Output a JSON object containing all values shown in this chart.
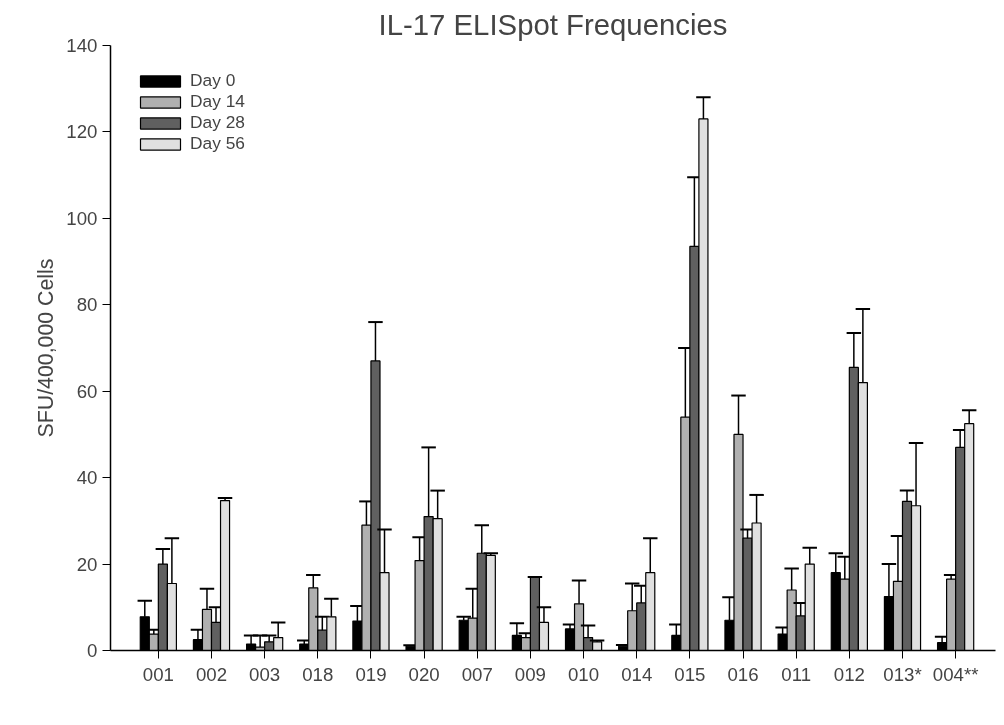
{
  "chart_data": {
    "type": "bar",
    "title": "IL-17 ELISpot Frequencies",
    "ylabel": "SFU/400,000 Cells",
    "categories": [
      "001",
      "002",
      "003",
      "018",
      "019",
      "020",
      "007",
      "009",
      "010",
      "014",
      "015",
      "016",
      "011",
      "012",
      "013*",
      "004**"
    ],
    "series": [
      {
        "name": "Day 0",
        "color": "#000000",
        "values": [
          7.8,
          2.5,
          1.5,
          1.5,
          6.8,
          1,
          7,
          3.5,
          5,
          1,
          3.5,
          7,
          3.8,
          18,
          12.5,
          1.8
        ],
        "errors": [
          [
            7.8,
            11.5
          ],
          [
            2.5,
            4.8
          ],
          [
            1.5,
            3.5
          ],
          [
            1.5,
            2.3
          ],
          [
            6.8,
            10.3
          ],
          [
            1,
            1.2
          ],
          [
            7,
            7.8
          ],
          [
            3.5,
            6.3
          ],
          [
            5,
            6
          ],
          [
            1,
            1.3
          ],
          [
            3.5,
            6
          ],
          [
            7,
            12.3
          ],
          [
            3.8,
            5.3
          ],
          [
            18,
            22.5
          ],
          [
            12.5,
            20
          ],
          [
            1.8,
            3.2
          ]
        ]
      },
      {
        "name": "Day 14",
        "color": "#b0b0b0",
        "values": [
          3.8,
          9.5,
          0.8,
          14.5,
          29,
          20.8,
          7.5,
          3,
          10.8,
          9.2,
          54,
          50,
          14,
          16.5,
          16,
          16.5
        ],
        "errors": [
          [
            3.8,
            4.8
          ],
          [
            9.5,
            14.3
          ],
          [
            0.8,
            3.5
          ],
          [
            14.5,
            17.5
          ],
          [
            29,
            34.5
          ],
          [
            20.8,
            26.2
          ],
          [
            7.5,
            14.3
          ],
          [
            3,
            4
          ],
          [
            10.8,
            16.2
          ],
          [
            9.2,
            15.5
          ],
          [
            54,
            70
          ],
          [
            50,
            59
          ],
          [
            14,
            19
          ],
          [
            16.5,
            21.7
          ],
          [
            16,
            26.5
          ],
          [
            16.5,
            17.5
          ]
        ]
      },
      {
        "name": "Day 28",
        "color": "#606060",
        "values": [
          20,
          6.5,
          2,
          4.7,
          67,
          31,
          22.5,
          17,
          3,
          11,
          93.5,
          26,
          8,
          65.5,
          34.5,
          47
        ],
        "errors": [
          [
            20,
            23.5
          ],
          [
            6.5,
            10
          ],
          [
            2,
            3.5
          ],
          [
            4.7,
            7.8
          ],
          [
            67,
            76
          ],
          [
            31,
            47
          ],
          [
            22.5,
            29
          ],
          [
            17,
            17
          ],
          [
            3,
            5.8
          ],
          [
            11,
            15
          ],
          [
            93.5,
            109.5
          ],
          [
            26,
            28
          ],
          [
            8,
            11
          ],
          [
            65.5,
            73.5
          ],
          [
            34.5,
            37
          ],
          [
            47,
            51
          ]
        ]
      },
      {
        "name": "Day 56",
        "color": "#e0e0e0",
        "values": [
          15.5,
          34.7,
          3,
          7.8,
          18,
          30.5,
          22,
          6.5,
          2,
          18,
          123,
          29.5,
          20,
          62,
          33.5,
          52.5
        ],
        "errors": [
          [
            15.5,
            26
          ],
          [
            34.7,
            35.3
          ],
          [
            3,
            6.5
          ],
          [
            7.8,
            12
          ],
          [
            18,
            28
          ],
          [
            30.5,
            37
          ],
          [
            22,
            22.5
          ],
          [
            6.5,
            10
          ],
          [
            2,
            2.3
          ],
          [
            18,
            26
          ],
          [
            123,
            128
          ],
          [
            29.5,
            36
          ],
          [
            20,
            23.8
          ],
          [
            62,
            79
          ],
          [
            33.5,
            48
          ],
          [
            52.5,
            55.6
          ]
        ]
      }
    ],
    "ylim": [
      0,
      140
    ],
    "yticks": [
      0,
      20,
      40,
      60,
      80,
      100,
      120,
      140
    ],
    "grid": false,
    "legend": "top left"
  }
}
